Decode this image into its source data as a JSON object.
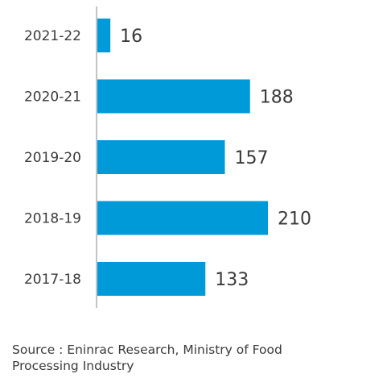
{
  "chart_data": {
    "type": "bar",
    "orientation": "horizontal",
    "categories": [
      "2021-22",
      "2020-21",
      "2019-20",
      "2018-19",
      "2017-18"
    ],
    "values": [
      16,
      188,
      157,
      210,
      133
    ],
    "title": "",
    "xlabel": "",
    "ylabel": "",
    "bar_color": "#009ad9",
    "grid": false,
    "legend": "none"
  },
  "source": "Source : Eninrac Research, Ministry of Food Processing Industry"
}
